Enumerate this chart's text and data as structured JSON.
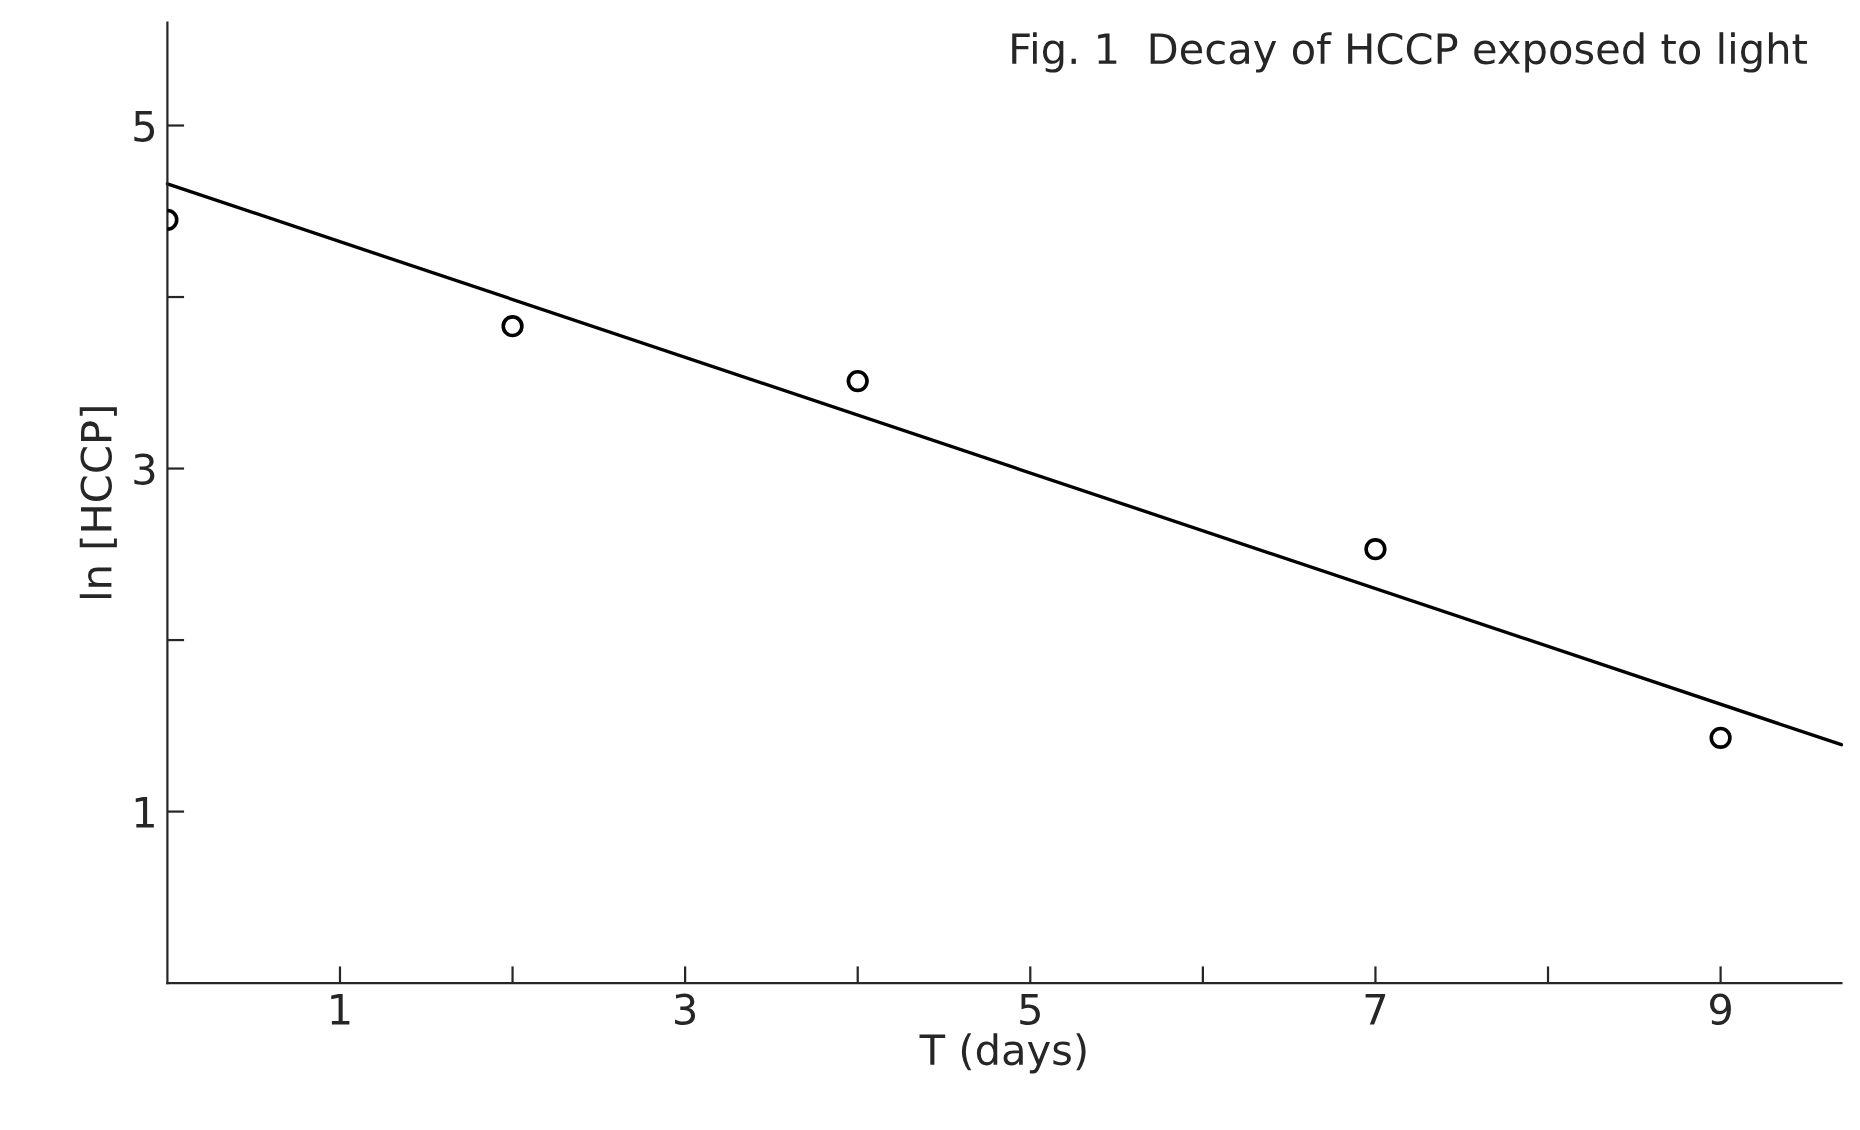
{
  "chart_data": {
    "type": "scatter",
    "title": "Fig. 1  Decay of HCCP exposed to light",
    "xlabel": "T (days)",
    "ylabel": "ln [HCCP]",
    "series": [
      {
        "color": "#000000",
        "x": [
          0,
          2,
          4,
          7,
          9
        ],
        "values": [
          4.45,
          3.83,
          3.51,
          2.53,
          1.43
        ],
        "marker": "circle"
      },
      {
        "type": "line",
        "color": "#000000",
        "x": [
          0,
          9.7
        ],
        "values": [
          4.66,
          1.39
        ],
        "line_style": "solid",
        "marker": "none"
      }
    ],
    "xlim": [
      0,
      9.7
    ],
    "ylim": [
      0,
      5.6
    ],
    "xticks": [
      1,
      {
        "value": 2,
        "label": null
      },
      3,
      {
        "value": 4,
        "label": null
      },
      5,
      {
        "value": 6,
        "label": null
      },
      7,
      {
        "value": 8,
        "label": null
      },
      9
    ],
    "yticks": [
      1,
      {
        "value": 2,
        "label": null
      },
      3,
      {
        "value": 4,
        "label": null
      },
      5
    ],
    "grid": false,
    "legend": false
  }
}
